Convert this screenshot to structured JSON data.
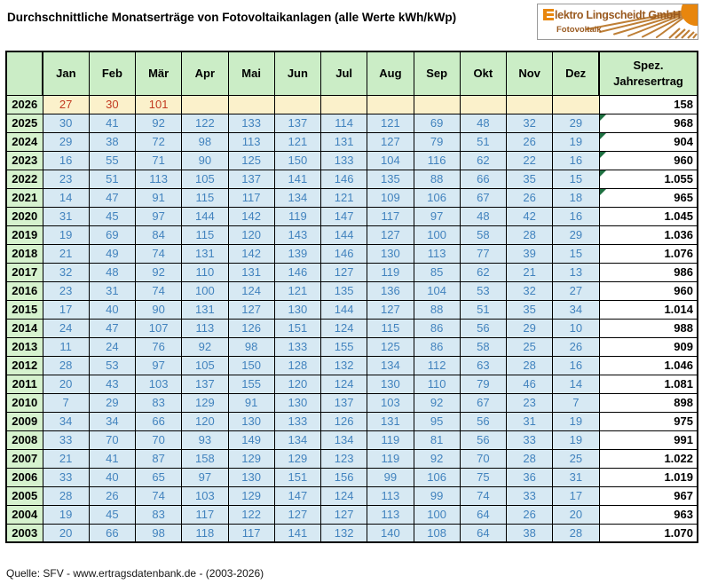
{
  "title": "Durchschnittliche Monatserträge von Fotovoltaikanlagen (alle Werte kWh/kWp)",
  "logo": {
    "company_initial": "E",
    "company_rest": "lektro Lingscheidt GmbH",
    "subtitle": "Fotovoltaik",
    "icon": "sun-rays-icon"
  },
  "source": "Quelle: SFV - www.ertragsdatenbank.de - (2003-2026)",
  "colors": {
    "header_green": "#cbedc6",
    "year_green": "#d6f2ce",
    "value_bg_blue": "#d7e9f3",
    "value_text_blue": "#4283be",
    "current_row_bg": "#fbf1cb",
    "current_row_text": "#c23a20",
    "total_bg": "#ffffff",
    "comment_marker_green": "#1e7041",
    "logo_orange": "#e8860d",
    "logo_text_brown": "#9a5a20",
    "grid": "#000000"
  },
  "chart_data": {
    "type": "table",
    "title": "Durchschnittliche Monatserträge von Fotovoltaikanlagen (alle Werte kWh/kWp)",
    "unit": "kWh/kWp",
    "columns": [
      "Jan",
      "Feb",
      "Mär",
      "Apr",
      "Mai",
      "Jun",
      "Jul",
      "Aug",
      "Sep",
      "Okt",
      "Nov",
      "Dez"
    ],
    "total_label": [
      "Spez.",
      "Jahresertrag"
    ],
    "rows": [
      {
        "year": "2026",
        "values": [
          27,
          30,
          101,
          null,
          null,
          null,
          null,
          null,
          null,
          null,
          null,
          null
        ],
        "total": "158",
        "current": true,
        "marker": false
      },
      {
        "year": "2025",
        "values": [
          30,
          41,
          92,
          122,
          133,
          137,
          114,
          121,
          69,
          48,
          32,
          29
        ],
        "total": "968",
        "current": false,
        "marker": true
      },
      {
        "year": "2024",
        "values": [
          29,
          38,
          72,
          98,
          113,
          121,
          131,
          127,
          79,
          51,
          26,
          19
        ],
        "total": "904",
        "current": false,
        "marker": true
      },
      {
        "year": "2023",
        "values": [
          16,
          55,
          71,
          90,
          125,
          150,
          133,
          104,
          116,
          62,
          22,
          16
        ],
        "total": "960",
        "current": false,
        "marker": true
      },
      {
        "year": "2022",
        "values": [
          23,
          51,
          113,
          105,
          137,
          141,
          146,
          135,
          88,
          66,
          35,
          15
        ],
        "total": "1.055",
        "current": false,
        "marker": true
      },
      {
        "year": "2021",
        "values": [
          14,
          47,
          91,
          115,
          117,
          134,
          121,
          109,
          106,
          67,
          26,
          18
        ],
        "total": "965",
        "current": false,
        "marker": true
      },
      {
        "year": "2020",
        "values": [
          31,
          45,
          97,
          144,
          142,
          119,
          147,
          117,
          97,
          48,
          42,
          16
        ],
        "total": "1.045",
        "current": false,
        "marker": false
      },
      {
        "year": "2019",
        "values": [
          19,
          69,
          84,
          115,
          120,
          143,
          144,
          127,
          100,
          58,
          28,
          29
        ],
        "total": "1.036",
        "current": false,
        "marker": false
      },
      {
        "year": "2018",
        "values": [
          21,
          49,
          74,
          131,
          142,
          139,
          146,
          130,
          113,
          77,
          39,
          15
        ],
        "total": "1.076",
        "current": false,
        "marker": false
      },
      {
        "year": "2017",
        "values": [
          32,
          48,
          92,
          110,
          131,
          146,
          127,
          119,
          85,
          62,
          21,
          13
        ],
        "total": "986",
        "current": false,
        "marker": false
      },
      {
        "year": "2016",
        "values": [
          23,
          31,
          74,
          100,
          124,
          121,
          135,
          136,
          104,
          53,
          32,
          27
        ],
        "total": "960",
        "current": false,
        "marker": false
      },
      {
        "year": "2015",
        "values": [
          17,
          40,
          90,
          131,
          127,
          130,
          144,
          127,
          88,
          51,
          35,
          34
        ],
        "total": "1.014",
        "current": false,
        "marker": false
      },
      {
        "year": "2014",
        "values": [
          24,
          47,
          107,
          113,
          126,
          151,
          124,
          115,
          86,
          56,
          29,
          10
        ],
        "total": "988",
        "current": false,
        "marker": false
      },
      {
        "year": "2013",
        "values": [
          11,
          24,
          76,
          92,
          98,
          133,
          155,
          125,
          86,
          58,
          25,
          26
        ],
        "total": "909",
        "current": false,
        "marker": false
      },
      {
        "year": "2012",
        "values": [
          28,
          53,
          97,
          105,
          150,
          128,
          132,
          134,
          112,
          63,
          28,
          16
        ],
        "total": "1.046",
        "current": false,
        "marker": false
      },
      {
        "year": "2011",
        "values": [
          20,
          43,
          103,
          137,
          155,
          120,
          124,
          130,
          110,
          79,
          46,
          14
        ],
        "total": "1.081",
        "current": false,
        "marker": false
      },
      {
        "year": "2010",
        "values": [
          7,
          29,
          83,
          129,
          91,
          130,
          137,
          103,
          92,
          67,
          23,
          7
        ],
        "total": "898",
        "current": false,
        "marker": false
      },
      {
        "year": "2009",
        "values": [
          34,
          34,
          66,
          120,
          130,
          133,
          126,
          131,
          95,
          56,
          31,
          19
        ],
        "total": "975",
        "current": false,
        "marker": false
      },
      {
        "year": "2008",
        "values": [
          33,
          70,
          70,
          93,
          149,
          134,
          134,
          119,
          81,
          56,
          33,
          19
        ],
        "total": "991",
        "current": false,
        "marker": false
      },
      {
        "year": "2007",
        "values": [
          21,
          41,
          87,
          158,
          129,
          129,
          123,
          119,
          92,
          70,
          28,
          25
        ],
        "total": "1.022",
        "current": false,
        "marker": false
      },
      {
        "year": "2006",
        "values": [
          33,
          40,
          65,
          97,
          130,
          151,
          156,
          99,
          106,
          75,
          36,
          31
        ],
        "total": "1.019",
        "current": false,
        "marker": false
      },
      {
        "year": "2005",
        "values": [
          28,
          26,
          74,
          103,
          129,
          147,
          124,
          113,
          99,
          74,
          33,
          17
        ],
        "total": "967",
        "current": false,
        "marker": false
      },
      {
        "year": "2004",
        "values": [
          19,
          45,
          83,
          117,
          122,
          127,
          127,
          113,
          100,
          64,
          26,
          20
        ],
        "total": "963",
        "current": false,
        "marker": false
      },
      {
        "year": "2003",
        "values": [
          20,
          66,
          98,
          118,
          117,
          141,
          132,
          140,
          108,
          64,
          38,
          28
        ],
        "total": "1.070",
        "current": false,
        "marker": false
      }
    ]
  }
}
